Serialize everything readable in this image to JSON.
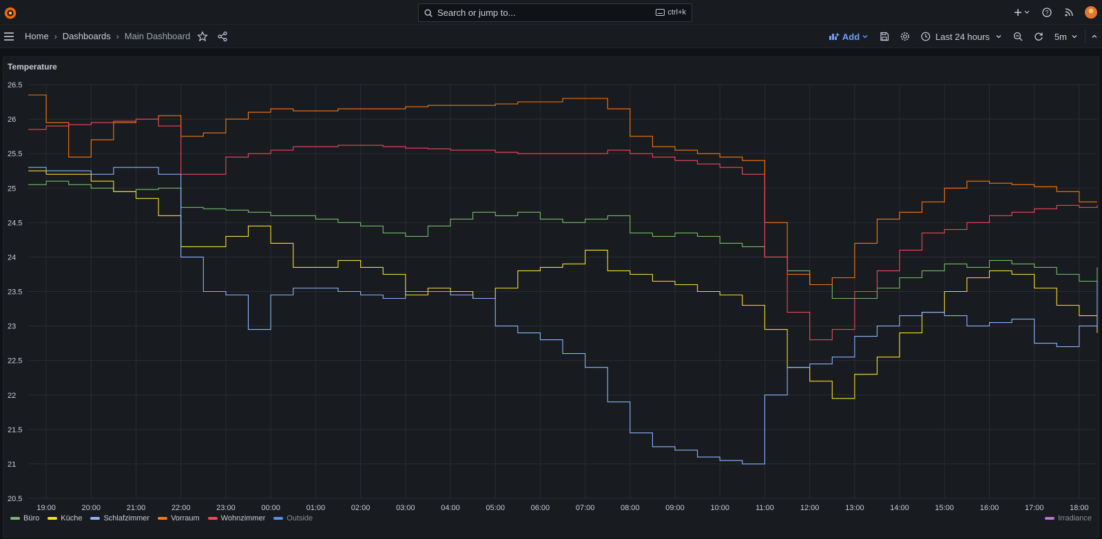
{
  "topbar": {
    "search_placeholder": "Search or jump to...",
    "search_shortcut": "ctrl+k"
  },
  "breadcrumb": {
    "home": "Home",
    "dashboards": "Dashboards",
    "current": "Main Dashboard"
  },
  "toolbar": {
    "add_label": "Add",
    "time_range": "Last 24 hours",
    "refresh_interval": "5m"
  },
  "panel": {
    "title": "Temperature"
  },
  "legend": {
    "items": [
      {
        "name": "Büro",
        "color": "#73bf69",
        "dim": false
      },
      {
        "name": "Küche",
        "color": "#fade2a",
        "dim": false
      },
      {
        "name": "Schlafzimmer",
        "color": "#8ab8ff",
        "dim": false
      },
      {
        "name": "Vorraum",
        "color": "#ff780a",
        "dim": false
      },
      {
        "name": "Wohnzimmer",
        "color": "#f2495c",
        "dim": false
      },
      {
        "name": "Outside",
        "color": "#5794f2",
        "dim": true
      }
    ],
    "right_item": {
      "name": "Irradiance",
      "color": "#b877d9"
    }
  },
  "chart_data": {
    "type": "line",
    "title": "Temperature",
    "x_ticks": [
      "19:00",
      "20:00",
      "21:00",
      "22:00",
      "23:00",
      "00:00",
      "01:00",
      "02:00",
      "03:00",
      "04:00",
      "05:00",
      "06:00",
      "07:00",
      "08:00",
      "09:00",
      "10:00",
      "11:00",
      "12:00",
      "13:00",
      "14:00",
      "15:00",
      "16:00",
      "17:00",
      "18:00"
    ],
    "y_ticks": [
      "20.5",
      "21",
      "21.5",
      "22",
      "22.5",
      "23",
      "23.5",
      "24",
      "24.5",
      "25",
      "25.5",
      "26",
      "26.5"
    ],
    "ylim": [
      20.5,
      26.5
    ],
    "x_range_hours": [
      18.6,
      42.4
    ],
    "grid": true,
    "legend_position": "bottom",
    "series": [
      {
        "name": "Büro",
        "color": "#73bf69",
        "points": [
          [
            18.6,
            25.05
          ],
          [
            19.0,
            25.1
          ],
          [
            19.5,
            25.05
          ],
          [
            20.0,
            25.0
          ],
          [
            20.5,
            24.95
          ],
          [
            21.0,
            24.98
          ],
          [
            21.5,
            25.0
          ],
          [
            22.0,
            24.72
          ],
          [
            22.5,
            24.7
          ],
          [
            23.0,
            24.68
          ],
          [
            23.5,
            24.65
          ],
          [
            24.0,
            24.6
          ],
          [
            24.5,
            24.6
          ],
          [
            25.0,
            24.55
          ],
          [
            25.5,
            24.5
          ],
          [
            26.0,
            24.45
          ],
          [
            26.5,
            24.35
          ],
          [
            27.0,
            24.3
          ],
          [
            27.5,
            24.45
          ],
          [
            28.0,
            24.55
          ],
          [
            28.5,
            24.65
          ],
          [
            29.0,
            24.6
          ],
          [
            29.5,
            24.65
          ],
          [
            30.0,
            24.55
          ],
          [
            30.5,
            24.5
          ],
          [
            31.0,
            24.55
          ],
          [
            31.5,
            24.6
          ],
          [
            32.0,
            24.35
          ],
          [
            32.5,
            24.3
          ],
          [
            33.0,
            24.35
          ],
          [
            33.5,
            24.3
          ],
          [
            34.0,
            24.2
          ],
          [
            34.5,
            24.15
          ],
          [
            35.0,
            24.0
          ],
          [
            35.5,
            23.8
          ],
          [
            36.0,
            23.6
          ],
          [
            36.5,
            23.4
          ],
          [
            37.0,
            23.4
          ],
          [
            37.5,
            23.55
          ],
          [
            38.0,
            23.7
          ],
          [
            38.5,
            23.8
          ],
          [
            39.0,
            23.9
          ],
          [
            39.5,
            23.85
          ],
          [
            40.0,
            23.95
          ],
          [
            40.5,
            23.9
          ],
          [
            41.0,
            23.85
          ],
          [
            41.5,
            23.75
          ],
          [
            42.0,
            23.65
          ],
          [
            42.4,
            23.85
          ]
        ]
      },
      {
        "name": "Küche",
        "color": "#fade2a",
        "points": [
          [
            18.6,
            25.25
          ],
          [
            19.0,
            25.2
          ],
          [
            19.5,
            25.2
          ],
          [
            20.0,
            25.1
          ],
          [
            20.5,
            24.95
          ],
          [
            21.0,
            24.85
          ],
          [
            21.5,
            24.6
          ],
          [
            22.0,
            24.15
          ],
          [
            22.5,
            24.15
          ],
          [
            23.0,
            24.3
          ],
          [
            23.5,
            24.45
          ],
          [
            24.0,
            24.2
          ],
          [
            24.5,
            23.85
          ],
          [
            25.0,
            23.85
          ],
          [
            25.5,
            23.95
          ],
          [
            26.0,
            23.85
          ],
          [
            26.5,
            23.75
          ],
          [
            27.0,
            23.45
          ],
          [
            27.5,
            23.55
          ],
          [
            28.0,
            23.5
          ],
          [
            28.5,
            23.4
          ],
          [
            29.0,
            23.55
          ],
          [
            29.5,
            23.8
          ],
          [
            30.0,
            23.85
          ],
          [
            30.5,
            23.9
          ],
          [
            31.0,
            24.1
          ],
          [
            31.5,
            23.8
          ],
          [
            32.0,
            23.75
          ],
          [
            32.5,
            23.65
          ],
          [
            33.0,
            23.6
          ],
          [
            33.5,
            23.5
          ],
          [
            34.0,
            23.45
          ],
          [
            34.5,
            23.3
          ],
          [
            35.0,
            22.95
          ],
          [
            35.5,
            22.4
          ],
          [
            36.0,
            22.2
          ],
          [
            36.5,
            21.95
          ],
          [
            37.0,
            22.3
          ],
          [
            37.5,
            22.55
          ],
          [
            38.0,
            22.9
          ],
          [
            38.5,
            23.2
          ],
          [
            39.0,
            23.5
          ],
          [
            39.5,
            23.7
          ],
          [
            40.0,
            23.8
          ],
          [
            40.5,
            23.75
          ],
          [
            41.0,
            23.55
          ],
          [
            41.5,
            23.3
          ],
          [
            42.0,
            23.15
          ],
          [
            42.4,
            22.9
          ]
        ]
      },
      {
        "name": "Schlafzimmer",
        "color": "#8ab8ff",
        "points": [
          [
            18.6,
            25.3
          ],
          [
            19.0,
            25.25
          ],
          [
            19.5,
            25.25
          ],
          [
            20.0,
            25.2
          ],
          [
            20.5,
            25.3
          ],
          [
            21.0,
            25.3
          ],
          [
            21.5,
            25.2
          ],
          [
            22.0,
            24.0
          ],
          [
            22.5,
            23.5
          ],
          [
            23.0,
            23.45
          ],
          [
            23.5,
            22.95
          ],
          [
            24.0,
            23.45
          ],
          [
            24.5,
            23.55
          ],
          [
            25.0,
            23.55
          ],
          [
            25.5,
            23.5
          ],
          [
            26.0,
            23.45
          ],
          [
            26.5,
            23.4
          ],
          [
            27.0,
            23.5
          ],
          [
            27.5,
            23.5
          ],
          [
            28.0,
            23.45
          ],
          [
            28.5,
            23.4
          ],
          [
            29.0,
            23.0
          ],
          [
            29.5,
            22.9
          ],
          [
            30.0,
            22.8
          ],
          [
            30.5,
            22.6
          ],
          [
            31.0,
            22.4
          ],
          [
            31.5,
            21.9
          ],
          [
            32.0,
            21.45
          ],
          [
            32.5,
            21.25
          ],
          [
            33.0,
            21.2
          ],
          [
            33.5,
            21.1
          ],
          [
            34.0,
            21.05
          ],
          [
            34.5,
            21.0
          ],
          [
            35.0,
            22.0
          ],
          [
            35.5,
            22.4
          ],
          [
            36.0,
            22.45
          ],
          [
            36.5,
            22.55
          ],
          [
            37.0,
            22.85
          ],
          [
            37.5,
            23.0
          ],
          [
            38.0,
            23.15
          ],
          [
            38.5,
            23.2
          ],
          [
            39.0,
            23.15
          ],
          [
            39.5,
            23.0
          ],
          [
            40.0,
            23.05
          ],
          [
            40.5,
            23.1
          ],
          [
            41.0,
            22.75
          ],
          [
            41.5,
            22.7
          ],
          [
            42.0,
            23.0
          ],
          [
            42.4,
            23.65
          ]
        ]
      },
      {
        "name": "Vorraum",
        "color": "#ff780a",
        "points": [
          [
            18.6,
            26.35
          ],
          [
            19.0,
            25.95
          ],
          [
            19.5,
            25.45
          ],
          [
            20.0,
            25.7
          ],
          [
            20.5,
            25.95
          ],
          [
            21.0,
            26.0
          ],
          [
            21.5,
            26.05
          ],
          [
            22.0,
            25.75
          ],
          [
            22.5,
            25.8
          ],
          [
            23.0,
            26.0
          ],
          [
            23.5,
            26.1
          ],
          [
            24.0,
            26.15
          ],
          [
            24.5,
            26.12
          ],
          [
            25.0,
            26.12
          ],
          [
            25.5,
            26.15
          ],
          [
            26.0,
            26.15
          ],
          [
            26.5,
            26.15
          ],
          [
            27.0,
            26.18
          ],
          [
            27.5,
            26.2
          ],
          [
            28.0,
            26.2
          ],
          [
            28.5,
            26.2
          ],
          [
            29.0,
            26.22
          ],
          [
            29.5,
            26.25
          ],
          [
            30.0,
            26.25
          ],
          [
            30.5,
            26.3
          ],
          [
            31.0,
            26.3
          ],
          [
            31.5,
            26.15
          ],
          [
            32.0,
            25.75
          ],
          [
            32.5,
            25.6
          ],
          [
            33.0,
            25.55
          ],
          [
            33.5,
            25.5
          ],
          [
            34.0,
            25.45
          ],
          [
            34.5,
            25.4
          ],
          [
            35.0,
            24.5
          ],
          [
            35.5,
            23.75
          ],
          [
            36.0,
            23.6
          ],
          [
            36.5,
            23.7
          ],
          [
            37.0,
            24.2
          ],
          [
            37.5,
            24.55
          ],
          [
            38.0,
            24.65
          ],
          [
            38.5,
            24.8
          ],
          [
            39.0,
            25.0
          ],
          [
            39.5,
            25.1
          ],
          [
            40.0,
            25.07
          ],
          [
            40.5,
            25.05
          ],
          [
            41.0,
            25.02
          ],
          [
            41.5,
            24.95
          ],
          [
            42.0,
            24.8
          ],
          [
            42.4,
            24.8
          ]
        ]
      },
      {
        "name": "Wohnzimmer",
        "color": "#f2495c",
        "points": [
          [
            18.6,
            25.85
          ],
          [
            19.0,
            25.9
          ],
          [
            19.5,
            25.92
          ],
          [
            20.0,
            25.95
          ],
          [
            20.5,
            25.97
          ],
          [
            21.0,
            26.0
          ],
          [
            21.5,
            25.9
          ],
          [
            22.0,
            25.2
          ],
          [
            22.5,
            25.2
          ],
          [
            23.0,
            25.45
          ],
          [
            23.5,
            25.5
          ],
          [
            24.0,
            25.55
          ],
          [
            24.5,
            25.6
          ],
          [
            25.0,
            25.6
          ],
          [
            25.5,
            25.62
          ],
          [
            26.0,
            25.62
          ],
          [
            26.5,
            25.6
          ],
          [
            27.0,
            25.58
          ],
          [
            27.5,
            25.57
          ],
          [
            28.0,
            25.55
          ],
          [
            28.5,
            25.55
          ],
          [
            29.0,
            25.52
          ],
          [
            29.5,
            25.5
          ],
          [
            30.0,
            25.5
          ],
          [
            30.5,
            25.5
          ],
          [
            31.0,
            25.5
          ],
          [
            31.5,
            25.55
          ],
          [
            32.0,
            25.5
          ],
          [
            32.5,
            25.45
          ],
          [
            33.0,
            25.4
          ],
          [
            33.5,
            25.35
          ],
          [
            34.0,
            25.3
          ],
          [
            34.5,
            25.2
          ],
          [
            35.0,
            24.0
          ],
          [
            35.5,
            23.2
          ],
          [
            36.0,
            22.8
          ],
          [
            36.5,
            22.95
          ],
          [
            37.0,
            23.5
          ],
          [
            37.5,
            23.8
          ],
          [
            38.0,
            24.1
          ],
          [
            38.5,
            24.35
          ],
          [
            39.0,
            24.4
          ],
          [
            39.5,
            24.5
          ],
          [
            40.0,
            24.6
          ],
          [
            40.5,
            24.65
          ],
          [
            41.0,
            24.7
          ],
          [
            41.5,
            24.75
          ],
          [
            42.0,
            24.72
          ],
          [
            42.4,
            24.75
          ]
        ]
      }
    ]
  }
}
